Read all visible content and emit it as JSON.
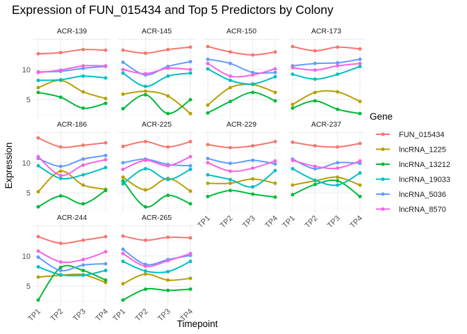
{
  "chart_data": {
    "type": "line",
    "title": "Expression of FUN_015434 and Top 5 Predictors by Colony",
    "xlabel": "Timepoint",
    "ylabel": "Expression",
    "x": [
      "TP1",
      "TP2",
      "TP3",
      "TP4"
    ],
    "yticks": [
      5,
      10
    ],
    "ylim": [
      1.8,
      15.4
    ],
    "grid": true,
    "legend": {
      "title": "Gene",
      "position": "right"
    },
    "series_names": [
      "FUN_015434",
      "lncRNA_1225",
      "lncRNA_13212",
      "lncRNA_19033",
      "lncRNA_5036",
      "lncRNA_8570"
    ],
    "colors": [
      "#F8766D",
      "#B79F00",
      "#00BA38",
      "#00BFC4",
      "#619CFF",
      "#F564E3"
    ],
    "panels": [
      {
        "colony": "ACR-139",
        "series": [
          {
            "name": "FUN_015434",
            "values": [
              12.6,
              12.8,
              13.3,
              13.2
            ]
          },
          {
            "name": "lncRNA_1225",
            "values": [
              7.0,
              8.2,
              6.3,
              5.2
            ]
          },
          {
            "name": "lncRNA_13212",
            "values": [
              6.2,
              5.4,
              3.6,
              4.4
            ]
          },
          {
            "name": "lncRNA_19033",
            "values": [
              8.2,
              8.3,
              8.9,
              8.6
            ]
          },
          {
            "name": "lncRNA_5036",
            "values": [
              9.6,
              9.7,
              10.2,
              10.5
            ]
          },
          {
            "name": "lncRNA_8570",
            "values": [
              9.5,
              9.9,
              10.6,
              10.6
            ]
          }
        ]
      },
      {
        "colony": "ACR-145",
        "series": [
          {
            "name": "FUN_015434",
            "values": [
              13.2,
              12.7,
              13.3,
              13.7
            ]
          },
          {
            "name": "lncRNA_1225",
            "values": [
              5.9,
              6.4,
              5.6,
              2.7
            ]
          },
          {
            "name": "lncRNA_13212",
            "values": [
              3.5,
              5.8,
              2.7,
              5.0
            ]
          },
          {
            "name": "lncRNA_19033",
            "values": [
              9.4,
              7.2,
              8.9,
              9.4
            ]
          },
          {
            "name": "lncRNA_5036",
            "values": [
              11.2,
              9.1,
              10.5,
              11.3
            ]
          },
          {
            "name": "lncRNA_8570",
            "values": [
              10.0,
              9.3,
              10.2,
              10.0
            ]
          }
        ]
      },
      {
        "colony": "ACR-150",
        "series": [
          {
            "name": "FUN_015434",
            "values": [
              13.8,
              12.9,
              12.4,
              12.9
            ]
          },
          {
            "name": "lncRNA_1225",
            "values": [
              4.1,
              7.0,
              7.5,
              6.2
            ]
          },
          {
            "name": "lncRNA_13212",
            "values": [
              2.8,
              4.7,
              6.2,
              4.8
            ]
          },
          {
            "name": "lncRNA_19033",
            "values": [
              10.1,
              8.2,
              7.6,
              8.8
            ]
          },
          {
            "name": "lncRNA_5036",
            "values": [
              11.7,
              11.0,
              9.5,
              9.5
            ]
          },
          {
            "name": "lncRNA_8570",
            "values": [
              11.0,
              8.9,
              9.1,
              10.1
            ]
          }
        ]
      },
      {
        "colony": "ACR-173",
        "series": [
          {
            "name": "FUN_015434",
            "values": [
              13.8,
              13.1,
              13.7,
              13.4
            ]
          },
          {
            "name": "lncRNA_1225",
            "values": [
              4.2,
              6.2,
              6.3,
              4.7
            ]
          },
          {
            "name": "lncRNA_13212",
            "values": [
              3.6,
              4.8,
              3.4,
              2.7
            ]
          },
          {
            "name": "lncRNA_19033",
            "values": [
              9.2,
              8.4,
              9.2,
              10.5
            ]
          },
          {
            "name": "lncRNA_5036",
            "values": [
              10.6,
              11.0,
              11.1,
              11.7
            ]
          },
          {
            "name": "lncRNA_8570",
            "values": [
              10.3,
              9.9,
              10.6,
              11.0
            ]
          }
        ]
      },
      {
        "colony": "ACR-186",
        "series": [
          {
            "name": "FUN_015434",
            "values": [
              14.1,
              12.6,
              12.9,
              13.3
            ]
          },
          {
            "name": "lncRNA_1225",
            "values": [
              5.2,
              8.6,
              6.3,
              5.6
            ]
          },
          {
            "name": "lncRNA_13212",
            "values": [
              2.7,
              4.5,
              3.2,
              5.4
            ]
          },
          {
            "name": "lncRNA_19033",
            "values": [
              9.5,
              7.4,
              8.0,
              9.2
            ]
          },
          {
            "name": "lncRNA_5036",
            "values": [
              10.7,
              9.4,
              10.6,
              11.2
            ]
          },
          {
            "name": "lncRNA_8570",
            "values": [
              11.0,
              7.9,
              9.6,
              10.5
            ]
          }
        ]
      },
      {
        "colony": "ACR-225",
        "series": [
          {
            "name": "FUN_015434",
            "values": [
              12.7,
              13.5,
              12.6,
              13.5
            ]
          },
          {
            "name": "lncRNA_1225",
            "values": [
              7.6,
              5.5,
              7.4,
              5.3
            ]
          },
          {
            "name": "lncRNA_13212",
            "values": [
              7.0,
              2.7,
              4.6,
              3.2
            ]
          },
          {
            "name": "lncRNA_19033",
            "values": [
              6.5,
              9.0,
              7.2,
              8.9
            ]
          },
          {
            "name": "lncRNA_5036",
            "values": [
              10.0,
              10.6,
              9.7,
              9.5
            ]
          },
          {
            "name": "lncRNA_8570",
            "values": [
              8.9,
              10.4,
              9.5,
              11.0
            ]
          }
        ]
      },
      {
        "colony": "ACR-229",
        "series": [
          {
            "name": "FUN_015434",
            "values": [
              13.0,
              12.5,
              12.8,
              13.5
            ]
          },
          {
            "name": "lncRNA_1225",
            "values": [
              6.6,
              6.6,
              7.3,
              6.6
            ]
          },
          {
            "name": "lncRNA_13212",
            "values": [
              4.4,
              5.4,
              4.8,
              4.3
            ]
          },
          {
            "name": "lncRNA_19033",
            "values": [
              8.0,
              7.2,
              6.0,
              8.7
            ]
          },
          {
            "name": "lncRNA_5036",
            "values": [
              10.7,
              9.9,
              10.4,
              9.8
            ]
          },
          {
            "name": "lncRNA_8570",
            "values": [
              10.0,
              8.6,
              9.1,
              10.3
            ]
          }
        ]
      },
      {
        "colony": "ACR-237",
        "series": [
          {
            "name": "FUN_015434",
            "values": [
              13.4,
              12.8,
              12.6,
              13.2
            ]
          },
          {
            "name": "lncRNA_1225",
            "values": [
              6.3,
              7.0,
              7.6,
              6.3
            ]
          },
          {
            "name": "lncRNA_13212",
            "values": [
              4.7,
              6.4,
              7.0,
              4.4
            ]
          },
          {
            "name": "lncRNA_19033",
            "values": [
              9.0,
              7.1,
              6.3,
              8.3
            ]
          },
          {
            "name": "lncRNA_5036",
            "values": [
              10.6,
              9.0,
              10.0,
              9.9
            ]
          },
          {
            "name": "lncRNA_8570",
            "values": [
              10.4,
              9.4,
              9.1,
              10.3
            ]
          }
        ]
      },
      {
        "colony": "ACR-244",
        "series": [
          {
            "name": "FUN_015434",
            "values": [
              13.2,
              12.1,
              12.6,
              13.2
            ]
          },
          {
            "name": "lncRNA_1225",
            "values": [
              6.5,
              6.8,
              6.9,
              5.6
            ]
          },
          {
            "name": "lncRNA_13212",
            "values": [
              2.7,
              8.1,
              7.6,
              6.0
            ]
          },
          {
            "name": "lncRNA_19033",
            "values": [
              8.2,
              6.9,
              6.8,
              7.6
            ]
          },
          {
            "name": "lncRNA_5036",
            "values": [
              9.8,
              7.6,
              8.5,
              8.7
            ]
          },
          {
            "name": "lncRNA_8570",
            "values": [
              10.8,
              9.0,
              9.4,
              10.7
            ]
          }
        ]
      },
      {
        "colony": "ACR-265",
        "series": [
          {
            "name": "FUN_015434",
            "values": [
              13.3,
              12.6,
              13.1,
              13.0
            ]
          },
          {
            "name": "lncRNA_1225",
            "values": [
              5.4,
              7.0,
              6.0,
              6.3
            ]
          },
          {
            "name": "lncRNA_13212",
            "values": [
              2.7,
              4.5,
              4.3,
              4.5
            ]
          },
          {
            "name": "lncRNA_19033",
            "values": [
              9.1,
              7.5,
              7.4,
              9.1
            ]
          },
          {
            "name": "lncRNA_5036",
            "values": [
              11.1,
              8.6,
              9.4,
              10.1
            ]
          },
          {
            "name": "lncRNA_8570",
            "values": [
              10.4,
              8.3,
              9.2,
              10.4
            ]
          }
        ]
      }
    ]
  }
}
